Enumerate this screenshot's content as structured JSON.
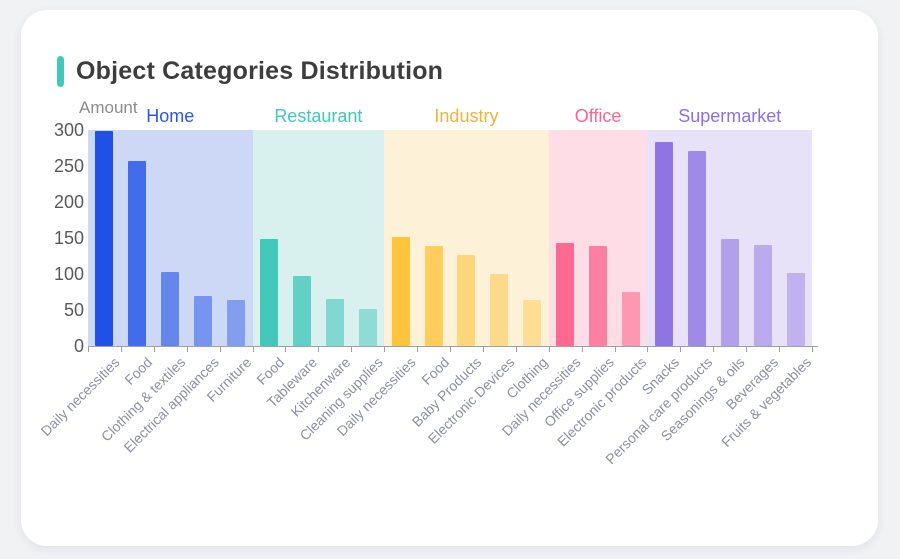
{
  "header": {
    "title": "Object Categories Distribution",
    "accent_color": "#3fc8ba"
  },
  "chart_data": {
    "type": "bar",
    "title": "Object Categories Distribution",
    "xlabel": "",
    "ylabel": "Amount",
    "ylim": [
      0,
      300
    ],
    "y_ticks": [
      "0",
      "50",
      "100",
      "150",
      "200",
      "250",
      "300"
    ],
    "grid": false,
    "group_labels_position": "top",
    "bar_opacity_steps": [
      1,
      0.8,
      0.6,
      0.5,
      0.43
    ],
    "axis_color": "#9aa0a6",
    "tick_label_color": "#58595b",
    "x_label_color": "#8a8fa1",
    "groups": [
      {
        "name": "Home",
        "label_color": "#2f54e8",
        "bar_color": "#1f51e6",
        "band_color": "#cdd8f6",
        "categories": [
          "Daily necessities",
          "Food",
          "Clothing & textiles",
          "Electrical appliances",
          "Furniture"
        ],
        "values": [
          298,
          257,
          103,
          69,
          64
        ]
      },
      {
        "name": "Restaurant",
        "label_color": "#3fc8ba",
        "bar_color": "#45c8bc",
        "band_color": "#d9f1ee",
        "categories": [
          "Food",
          "Tableware",
          "Kitchenware",
          "Cleaning supplies"
        ],
        "values": [
          148,
          97,
          65,
          51
        ]
      },
      {
        "name": "Industry",
        "label_color": "#eab43e",
        "bar_color": "#fec43d",
        "band_color": "#fdf1d8",
        "categories": [
          "Daily necessities",
          "Food",
          "Baby Products",
          "Electronic Devices",
          "Clothing"
        ],
        "values": [
          151,
          139,
          126,
          100,
          64
        ]
      },
      {
        "name": "Office",
        "label_color": "#fb6490",
        "bar_color": "#fd6990",
        "band_color": "#fedde7",
        "categories": [
          "Daily necessities",
          "Office supplies",
          "Electronic products"
        ],
        "values": [
          143,
          139,
          75
        ]
      },
      {
        "name": "Supermarket",
        "label_color": "#8b6fe0",
        "bar_color": "#8f74e3",
        "band_color": "#e7e2f8",
        "categories": [
          "Snacks",
          "Personal care products",
          "Seasonings & oils",
          "Beverages",
          "Fruits & vegetables"
        ],
        "values": [
          284,
          271,
          148,
          140,
          101
        ]
      }
    ]
  }
}
